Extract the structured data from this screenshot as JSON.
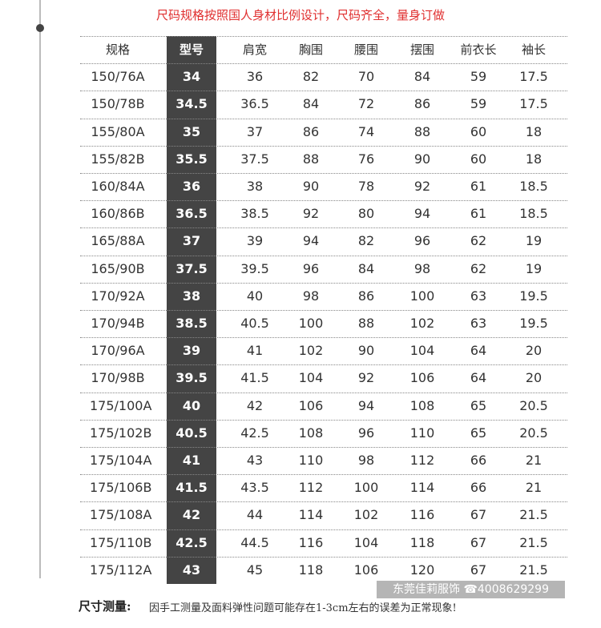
{
  "header": {
    "title": "尺码规格按照国人身材比例设计，尺码齐全，量身订做"
  },
  "table": {
    "columns": [
      "规格",
      "型号",
      "肩宽",
      "胸围",
      "腰围",
      "摆围",
      "前衣长",
      "袖长"
    ],
    "rows": [
      [
        "150/76A",
        "34",
        "36",
        "82",
        "70",
        "84",
        "59",
        "17.5"
      ],
      [
        "150/78B",
        "34.5",
        "36.5",
        "84",
        "72",
        "86",
        "59",
        "17.5"
      ],
      [
        "155/80A",
        "35",
        "37",
        "86",
        "74",
        "88",
        "60",
        "18"
      ],
      [
        "155/82B",
        "35.5",
        "37.5",
        "88",
        "76",
        "90",
        "60",
        "18"
      ],
      [
        "160/84A",
        "36",
        "38",
        "90",
        "78",
        "92",
        "61",
        "18.5"
      ],
      [
        "160/86B",
        "36.5",
        "38.5",
        "92",
        "80",
        "94",
        "61",
        "18.5"
      ],
      [
        "165/88A",
        "37",
        "39",
        "94",
        "82",
        "96",
        "62",
        "19"
      ],
      [
        "165/90B",
        "37.5",
        "39.5",
        "96",
        "84",
        "98",
        "62",
        "19"
      ],
      [
        "170/92A",
        "38",
        "40",
        "98",
        "86",
        "100",
        "63",
        "19.5"
      ],
      [
        "170/94B",
        "38.5",
        "40.5",
        "100",
        "88",
        "102",
        "63",
        "19.5"
      ],
      [
        "170/96A",
        "39",
        "41",
        "102",
        "90",
        "104",
        "64",
        "20"
      ],
      [
        "170/98B",
        "39.5",
        "41.5",
        "104",
        "92",
        "106",
        "64",
        "20"
      ],
      [
        "175/100A",
        "40",
        "42",
        "106",
        "94",
        "108",
        "65",
        "20.5"
      ],
      [
        "175/102B",
        "40.5",
        "42.5",
        "108",
        "96",
        "110",
        "65",
        "20.5"
      ],
      [
        "175/104A",
        "41",
        "43",
        "110",
        "98",
        "112",
        "66",
        "21"
      ],
      [
        "175/106B",
        "41.5",
        "43.5",
        "112",
        "100",
        "114",
        "66",
        "21"
      ],
      [
        "175/108A",
        "42",
        "44",
        "114",
        "102",
        "116",
        "67",
        "21.5"
      ],
      [
        "175/110B",
        "42.5",
        "44.5",
        "116",
        "104",
        "118",
        "67",
        "21.5"
      ],
      [
        "175/112A",
        "43",
        "45",
        "118",
        "106",
        "120",
        "67",
        "21.5"
      ]
    ]
  },
  "footer": {
    "label": "尺寸测量:",
    "note": "因手工测量及面料弹性问题可能存在1-3cm左右的误差为正常现象!"
  },
  "watermark": "东莞佳莉服饰 ☎4008629299"
}
